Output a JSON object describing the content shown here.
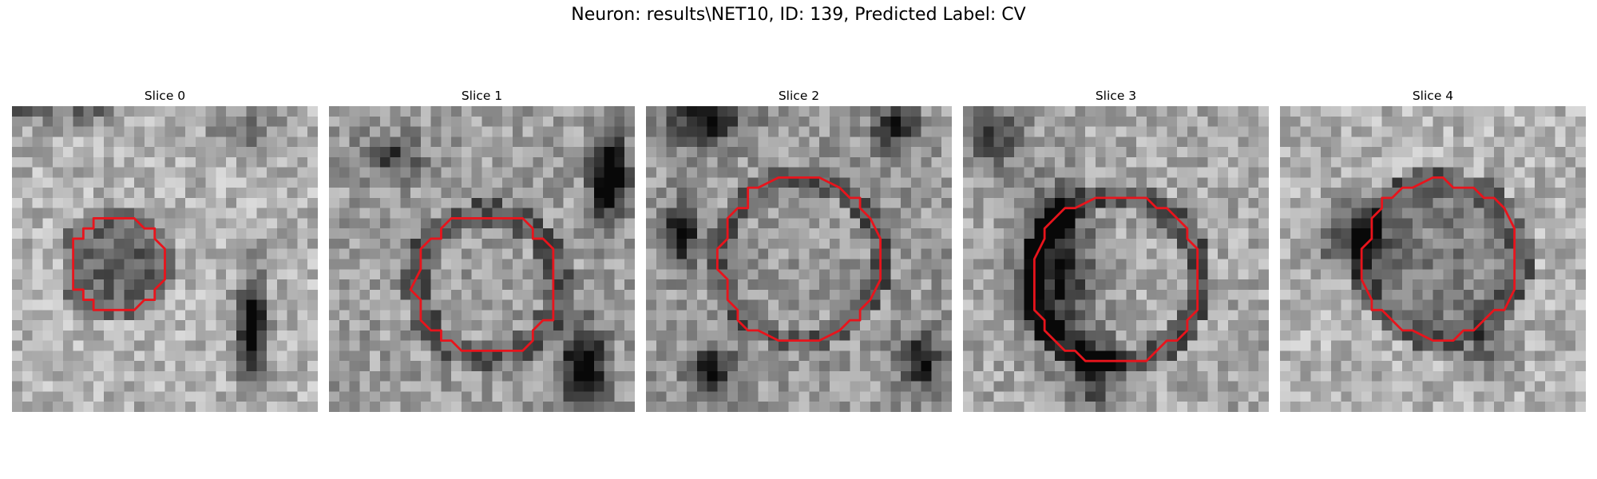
{
  "suptitle": "Neuron: results\\NET10, ID: 139, Predicted Label: CV",
  "contour_color": "#e8141c",
  "colormap": "gray",
  "slices": [
    {
      "title": "Slice 0"
    },
    {
      "title": "Slice 1"
    },
    {
      "title": "Slice 2"
    },
    {
      "title": "Slice 3"
    },
    {
      "title": "Slice 4"
    }
  ]
}
